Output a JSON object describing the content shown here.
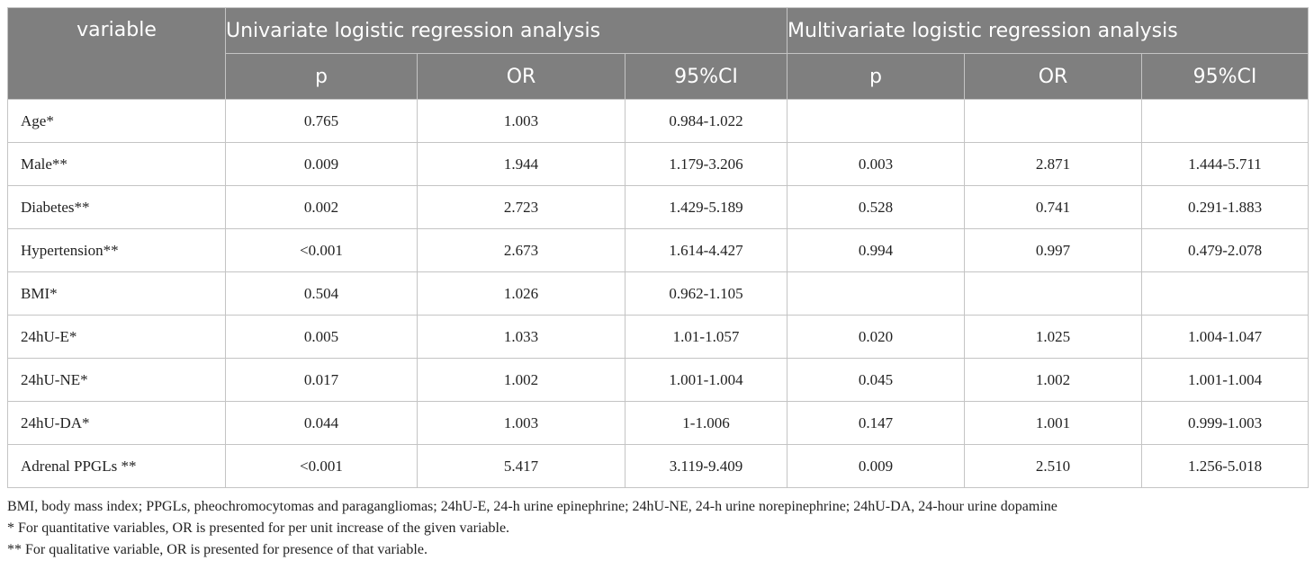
{
  "table": {
    "header": {
      "variable": "variable",
      "univariate": "Univariate logistic regression analysis",
      "multivariate": "Multivariate logistic regression analysis",
      "sub": [
        "p",
        "OR",
        "95%CI",
        "p",
        "OR",
        "95%CI"
      ]
    },
    "rows": [
      {
        "label": "Age*",
        "cells": [
          "0.765",
          "1.003",
          "0.984-1.022",
          "",
          "",
          ""
        ]
      },
      {
        "label": "Male**",
        "cells": [
          "0.009",
          "1.944",
          "1.179-3.206",
          "0.003",
          "2.871",
          "1.444-5.711"
        ]
      },
      {
        "label": "Diabetes**",
        "cells": [
          "0.002",
          "2.723",
          "1.429-5.189",
          "0.528",
          "0.741",
          "0.291-1.883"
        ]
      },
      {
        "label": "Hypertension**",
        "cells": [
          "<0.001",
          "2.673",
          "1.614-4.427",
          "0.994",
          "0.997",
          "0.479-2.078"
        ]
      },
      {
        "label": "BMI*",
        "cells": [
          "0.504",
          "1.026",
          "0.962-1.105",
          "",
          "",
          ""
        ]
      },
      {
        "label": "24hU-E*",
        "cells": [
          "0.005",
          "1.033",
          "1.01-1.057",
          "0.020",
          "1.025",
          "1.004-1.047"
        ]
      },
      {
        "label": "24hU-NE*",
        "cells": [
          "0.017",
          "1.002",
          "1.001-1.004",
          "0.045",
          "1.002",
          "1.001-1.004"
        ]
      },
      {
        "label": "24hU-DA*",
        "cells": [
          "0.044",
          "1.003",
          "1-1.006",
          "0.147",
          "1.001",
          "0.999-1.003"
        ]
      },
      {
        "label": "Adrenal PPGLs **",
        "cells": [
          "<0.001",
          "5.417",
          "3.119-9.409",
          "0.009",
          "2.510",
          "1.256-5.018"
        ]
      }
    ]
  },
  "notes": [
    "BMI, body mass index; PPGLs, pheochromocytomas and paragangliomas; 24hU-E, 24-h urine epinephrine; 24hU-NE, 24-h urine norepinephrine; 24hU-DA, 24-hour urine dopamine",
    "* For quantitative variables, OR is presented for per unit increase of the given variable.",
    "** For qualitative variable, OR is presented for presence of that variable."
  ],
  "colors": {
    "header_bg": "#7f7f7f",
    "header_text": "#ffffff",
    "border": "#c4c4c4"
  }
}
